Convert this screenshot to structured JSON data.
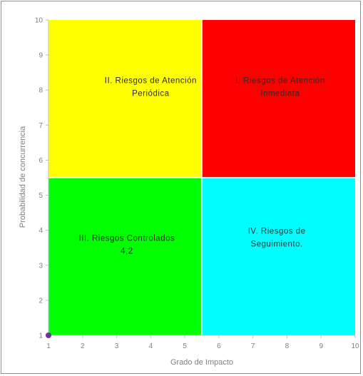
{
  "chart_data": {
    "type": "scatter",
    "title": "",
    "xlabel": "Grado de Impacto",
    "ylabel": "Probabilidad de concurrencia",
    "xlim": [
      1,
      10
    ],
    "ylim": [
      1,
      10
    ],
    "x_ticks": [
      "1",
      "2",
      "3",
      "4",
      "5",
      "6",
      "7",
      "8",
      "9",
      "10"
    ],
    "y_ticks": [
      "1",
      "2",
      "3",
      "4",
      "5",
      "6",
      "7",
      "8",
      "9",
      "10"
    ],
    "grid": false,
    "quadrants": [
      {
        "id": "q2",
        "x": [
          1,
          5.5
        ],
        "y": [
          5.5,
          10
        ],
        "color": "#ffff00",
        "lines": [
          "II. Riesgos de Atención",
          "Periódica"
        ],
        "label_at": [
          4,
          8.2
        ]
      },
      {
        "id": "q1",
        "x": [
          5.5,
          10
        ],
        "y": [
          5.5,
          10
        ],
        "color": "#ff0000",
        "lines": [
          "I. Riesgos de Atención",
          "Inmediata"
        ],
        "label_at": [
          7.8,
          8.2
        ]
      },
      {
        "id": "q3",
        "x": [
          1,
          5.5
        ],
        "y": [
          1,
          5.5
        ],
        "color": "#00ff00",
        "lines": [
          "III. Riesgos Controlados",
          "4,2"
        ],
        "label_at": [
          3.3,
          3.7
        ]
      },
      {
        "id": "q4",
        "x": [
          5.5,
          10
        ],
        "y": [
          1,
          5.5
        ],
        "color": "#00ffff",
        "lines": [
          "IV. Riesgos de",
          "Seguimiento."
        ],
        "label_at": [
          7.7,
          3.9
        ]
      }
    ],
    "points": [
      {
        "x": 1,
        "y": 1,
        "color": "#7030a0"
      }
    ],
    "axis_color": "#bfbfbf",
    "divider_color": "#ffffff"
  }
}
